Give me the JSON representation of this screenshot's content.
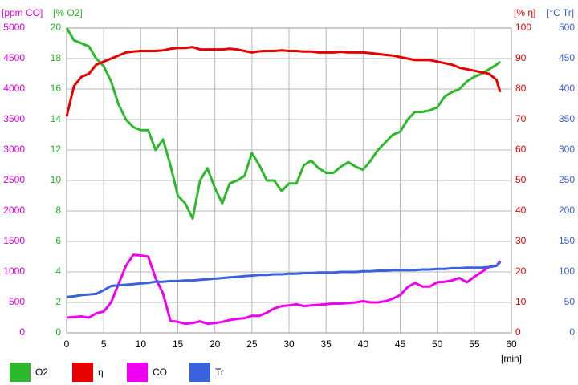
{
  "chart_data": {
    "type": "line",
    "xlabel": "[min]",
    "x": [
      0,
      1,
      2,
      3,
      4,
      5,
      6,
      7,
      8,
      9,
      10,
      11,
      12,
      13,
      14,
      15,
      16,
      17,
      18,
      19,
      20,
      21,
      22,
      23,
      24,
      25,
      26,
      27,
      28,
      29,
      30,
      31,
      32,
      33,
      34,
      35,
      36,
      37,
      38,
      39,
      40,
      41,
      42,
      43,
      44,
      45,
      46,
      47,
      48,
      49,
      50,
      51,
      52,
      53,
      54,
      55,
      56,
      57,
      58,
      58.5
    ],
    "xlim": [
      0,
      60
    ],
    "xticks": [
      0,
      5,
      10,
      15,
      20,
      25,
      30,
      35,
      40,
      45,
      50,
      55,
      60
    ],
    "grid": true,
    "axes": [
      {
        "label": "[ppm CO]",
        "color": "#e000e0",
        "side": "left",
        "lim": [
          0,
          5000
        ],
        "ticks": [
          0,
          500,
          1000,
          1500,
          2000,
          2500,
          3000,
          3500,
          4000,
          4500,
          5000
        ]
      },
      {
        "label": "[% O2]",
        "color": "#22b422",
        "side": "left",
        "lim": [
          0,
          20
        ],
        "ticks": [
          0,
          2,
          4,
          6,
          8,
          10,
          12,
          14,
          16,
          18,
          20
        ]
      },
      {
        "label": "[% η]",
        "color": "#e00000",
        "side": "right",
        "lim": [
          0,
          100
        ],
        "ticks": [
          0,
          10,
          20,
          30,
          40,
          50,
          60,
          70,
          80,
          90,
          100
        ]
      },
      {
        "label": "[°C Tr]",
        "color": "#3a5fd8",
        "side": "right",
        "lim": [
          0,
          500
        ],
        "ticks": [
          0,
          50,
          100,
          150,
          200,
          250,
          300,
          350,
          400,
          450,
          500
        ]
      }
    ],
    "series": [
      {
        "name": "O2",
        "color": "#2db82d",
        "axis": 1,
        "values": [
          20,
          19.2,
          19,
          18.8,
          18,
          17.5,
          16.5,
          15,
          14,
          13.5,
          13.3,
          13.3,
          12,
          12.7,
          11,
          9,
          8.5,
          7.5,
          10,
          10.8,
          9.5,
          8.5,
          9.8,
          10,
          10.3,
          11.8,
          11,
          10,
          10,
          9.3,
          9.8,
          9.8,
          11,
          11.3,
          10.8,
          10.5,
          10.5,
          10.9,
          11.2,
          10.9,
          10.7,
          11.3,
          12,
          12.5,
          13,
          13.2,
          14,
          14.5,
          14.5,
          14.6,
          14.8,
          15.5,
          15.8,
          16,
          16.5,
          16.8,
          17,
          17.3,
          17.6,
          17.8
        ]
      },
      {
        "name": "η",
        "color": "#e60000",
        "axis": 2,
        "values": [
          71,
          81,
          84,
          85,
          88,
          89,
          90,
          91,
          92,
          92.3,
          92.5,
          92.5,
          92.5,
          92.7,
          93.2,
          93.5,
          93.5,
          93.8,
          93,
          93,
          93,
          93,
          93.2,
          93,
          92.5,
          92,
          92.4,
          92.5,
          92.5,
          92.7,
          92.5,
          92.5,
          92.3,
          92.3,
          92,
          92,
          92,
          92.2,
          92,
          92,
          92,
          91.8,
          91.5,
          91.2,
          91,
          90.5,
          90,
          89.5,
          89.5,
          89.5,
          89,
          88.5,
          88,
          87,
          86.5,
          86,
          85.5,
          85,
          83,
          79
        ]
      },
      {
        "name": "CO",
        "color": "#f000f0",
        "axis": 0,
        "values": [
          250,
          260,
          270,
          250,
          320,
          350,
          500,
          800,
          1100,
          1280,
          1270,
          1250,
          900,
          650,
          200,
          180,
          150,
          160,
          190,
          150,
          160,
          180,
          210,
          230,
          240,
          280,
          280,
          330,
          400,
          440,
          450,
          470,
          440,
          450,
          460,
          470,
          480,
          480,
          490,
          500,
          520,
          500,
          500,
          520,
          560,
          620,
          750,
          820,
          760,
          760,
          830,
          840,
          860,
          900,
          830,
          920,
          1000,
          1080,
          1100,
          1180
        ]
      },
      {
        "name": "Tr",
        "color": "#3a62dc",
        "axis": 3,
        "values": [
          59,
          60,
          62,
          63,
          64,
          70,
          77,
          78,
          79,
          80,
          81,
          82,
          84,
          84,
          85,
          85,
          86,
          86,
          87,
          88,
          89,
          90,
          91,
          92,
          93,
          94,
          95,
          95,
          96,
          96,
          97,
          97,
          98,
          98,
          99,
          99,
          99,
          100,
          100,
          100,
          101,
          101,
          102,
          102,
          103,
          103,
          103,
          103,
          104,
          104,
          105,
          105,
          106,
          106,
          107,
          107,
          107,
          108,
          110,
          116
        ]
      }
    ]
  }
}
